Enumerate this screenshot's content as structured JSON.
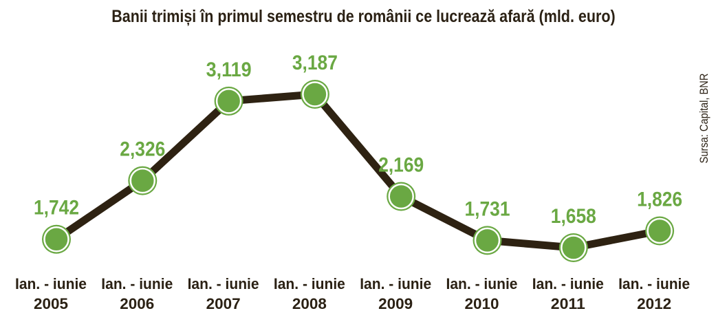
{
  "chart_data": {
    "type": "line",
    "title": "Banii trimiși în primul semestru de românii ce lucrează afară (mld. euro)",
    "source": "Sursa: Capital, BNR",
    "categories": [
      [
        "Ian. - iunie",
        "2005"
      ],
      [
        "Ian. - iunie",
        "2006"
      ],
      [
        "Ian. - iunie",
        "2007"
      ],
      [
        "Ian. - iunie",
        "2008"
      ],
      [
        "Ian. - iunie",
        "2009"
      ],
      [
        "Ian. - iunie",
        "2010"
      ],
      [
        "Ian. - iunie",
        "2011"
      ],
      [
        "Ian. - iunie",
        "2012"
      ]
    ],
    "values": [
      1.742,
      2.326,
      3.119,
      3.187,
      2.169,
      1.731,
      1.658,
      1.826
    ],
    "value_labels": [
      "1,742",
      "2,326",
      "3,119",
      "3,187",
      "2,169",
      "1,731",
      "1,658",
      "1,826"
    ],
    "xlabel": "",
    "ylabel": "",
    "grid": false,
    "line_color": "#2e2212",
    "marker_color": "#6aa843",
    "label_color": "#6aa843",
    "text_color": "#2b2114"
  }
}
